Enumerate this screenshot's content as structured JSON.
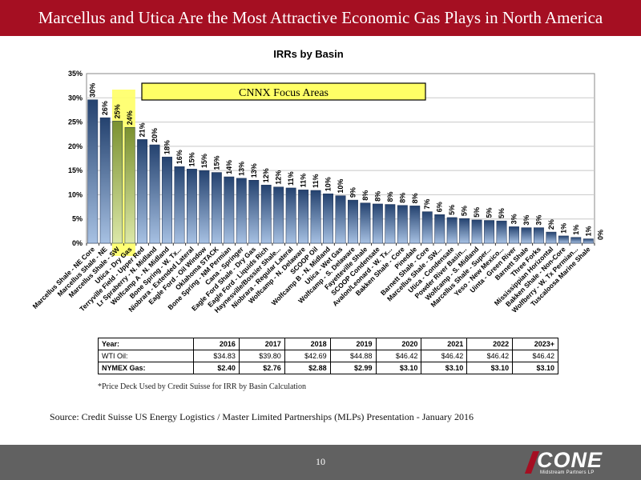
{
  "header": {
    "title": "Marcellus and Utica Are the Most Attractive Economic Gas Plays in North America"
  },
  "colors": {
    "header_bg": "#a50f22",
    "footer_bg": "#616161",
    "highlight": "#ffff66",
    "focus_bar": "#8aa03a"
  },
  "chart_data": {
    "type": "bar",
    "title": "IRRs by Basin",
    "callout": "CNNX Focus Areas",
    "ylim": [
      0,
      35
    ],
    "yticks": [
      "0%",
      "5%",
      "10%",
      "15%",
      "20%",
      "25%",
      "30%",
      "35%"
    ],
    "grid": true,
    "categories": [
      "Marcellus Shale - NE Core",
      "Marcellus Shale - NE",
      "Marcellus Shale - SW",
      "Utica - Dry Gas",
      "Terryville Field - Upper Red",
      "Lr Spraberry - N. Midland",
      "Wolfcamp A - N. Midland",
      "Bone Spring - W. Tx...",
      "Niobrara - Extended Lateral",
      "Eagle Ford - Oil Window",
      "Oklahoma STACK",
      "Bone Spring - NM Permian",
      "Cana - Springer",
      "Eagle Ford Shale - Dry Gas",
      "Eagle Ford - Liquids Rich",
      "Haynesville/Bossier Shale...",
      "Niobrara - Regular Lateral",
      "Wolfcamp - N. Delaware",
      "SCOOP Oil",
      "Wolfcamp B - N. Midland",
      "Utica - Wet Gas",
      "Wolfcamp - S. Delaware",
      "Fayetteville Shale",
      "SCOOP Condensate",
      "Avalon/Leonard - W. Tx...",
      "Bakken Shale - Core",
      "Pinedale",
      "Barnett Shale - Core",
      "Marcellus Shale - SW...",
      "Utica - Condensate",
      "Powder River Basin...",
      "Wolfcamp - S. Midland",
      "Marcellus Shale - Super...",
      "Yeso - New Mexico...",
      "Uinta - Green River",
      "Barnett Shale",
      "Three Forks",
      "Mississippian Horizontal",
      "Bakken Shale - Non-Core",
      "Wolfberry - W. Tx Permian...",
      "Tuscaloosa Marine Shale"
    ],
    "values": [
      29.6,
      25.9,
      25.2,
      23.9,
      21.4,
      20.3,
      17.8,
      15.8,
      15.3,
      15.0,
      14.6,
      13.7,
      13.4,
      13.0,
      12.0,
      11.6,
      11.4,
      11.0,
      10.9,
      10.2,
      9.8,
      8.9,
      8.3,
      8.1,
      8.0,
      7.8,
      7.7,
      6.5,
      5.9,
      5.3,
      5.1,
      4.8,
      4.7,
      4.6,
      3.4,
      3.2,
      3.2,
      2.3,
      1.5,
      1.2,
      0.9
    ],
    "labels": [
      "30%",
      "26%",
      "25%",
      "24%",
      "21%",
      "20%",
      "18%",
      "16%",
      "15%",
      "15%",
      "15%",
      "14%",
      "13%",
      "13%",
      "12%",
      "12%",
      "11%",
      "11%",
      "11%",
      "10%",
      "10%",
      "9%",
      "8%",
      "8%",
      "8%",
      "8%",
      "8%",
      "7%",
      "6%",
      "5%",
      "5%",
      "5%",
      "5%",
      "5%",
      "3%",
      "3%",
      "3%",
      "2%",
      "1%",
      "1%",
      "1%"
    ],
    "labels_overflow": [
      "0%"
    ],
    "highlighted_indices": [
      2,
      3
    ]
  },
  "price_deck": {
    "years_label": "Year:",
    "years": [
      "2016",
      "2017",
      "2018",
      "2019",
      "2020",
      "2021",
      "2022",
      "2023+"
    ],
    "wti_label": "WTI Oil:",
    "wti": [
      "$34.83",
      "$39.80",
      "$42.69",
      "$44.88",
      "$46.42",
      "$46.42",
      "$46.42",
      "$46.42"
    ],
    "gas_label": "NYMEX Gas:",
    "gas": [
      "$2.40",
      "$2.76",
      "$2.88",
      "$2.99",
      "$3.10",
      "$3.10",
      "$3.10",
      "$3.10"
    ]
  },
  "footnote": "*Price Deck Used by Credit Suisse for IRR by Basin Calculation",
  "source": "Source: Credit Suisse US Energy Logistics / Master Limited Partnerships (MLPs) Presentation - January 2016",
  "footer": {
    "page_number": "10",
    "logo_text": "CONE",
    "logo_subtext": "Midstream Partners LP"
  }
}
